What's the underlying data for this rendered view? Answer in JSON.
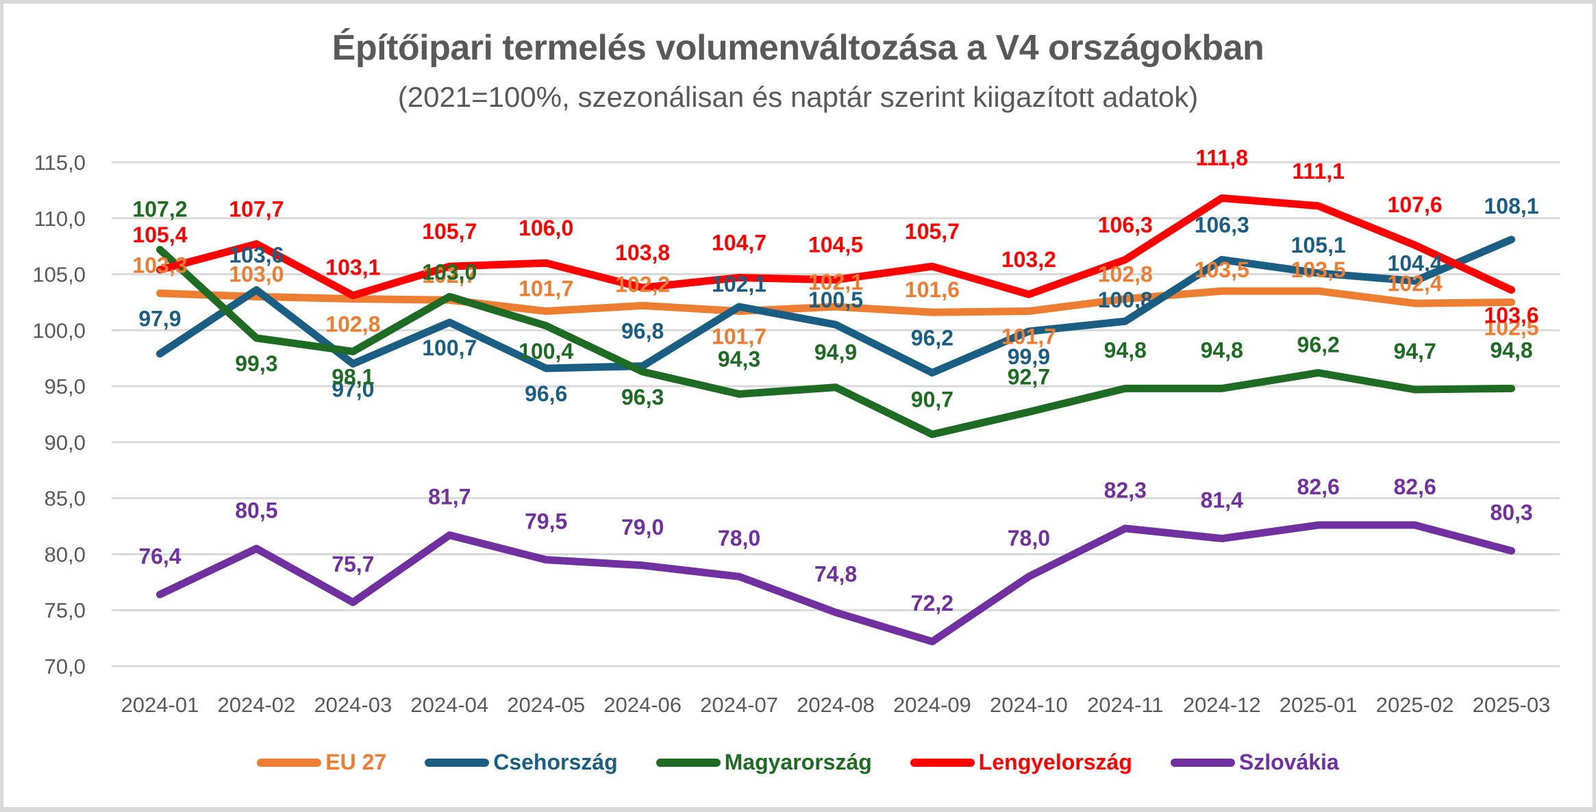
{
  "chart_data": {
    "type": "line",
    "title": "Építőipari termelés volumenváltozása a V4 országokban",
    "subtitle": "(2021=100%, szezonálisan és naptár szerint kiigazított adatok)",
    "xlabel": "",
    "ylabel": "",
    "ylim": [
      70,
      115
    ],
    "yticks": [
      "115,0",
      "110,0",
      "105,0",
      "100,0",
      "95,0",
      "90,0",
      "85,0",
      "80,0",
      "75,0",
      "70,0"
    ],
    "ytick_values": [
      115,
      110,
      105,
      100,
      95,
      90,
      85,
      80,
      75,
      70
    ],
    "grid": true,
    "legend_position": "bottom",
    "categories": [
      "2024-01",
      "2024-02",
      "2024-03",
      "2024-04",
      "2024-05",
      "2024-06",
      "2024-07",
      "2024-08",
      "2024-09",
      "2024-10",
      "2024-11",
      "2024-12",
      "2025-01",
      "2025-02",
      "2025-03"
    ],
    "series": [
      {
        "name": "EU 27",
        "color": "#ED7D31",
        "values": [
          103.3,
          103.0,
          102.8,
          102.7,
          101.7,
          102.2,
          101.7,
          102.1,
          101.6,
          101.7,
          102.8,
          103.5,
          103.5,
          102.4,
          102.5
        ],
        "labels": [
          "103,3",
          "103,0",
          "102,8",
          "102,7",
          "101,7",
          "102,2",
          "101,7",
          "102,1",
          "101,6",
          "101,7",
          "102,8",
          "103,5",
          "103,5",
          "102,4",
          "102,5"
        ]
      },
      {
        "name": "Csehország",
        "color": "#1A5E84",
        "values": [
          97.9,
          103.6,
          97.0,
          100.7,
          96.6,
          96.8,
          102.1,
          100.5,
          96.2,
          99.9,
          100.8,
          106.3,
          105.1,
          104.4,
          108.1
        ],
        "labels": [
          "97,9",
          "103,6",
          "97,0",
          "100,7",
          "96,6",
          "96,8",
          "102,1",
          "100,5",
          "96,2",
          "99,9",
          "100,8",
          "106,3",
          "105,1",
          "104,4",
          "108,1"
        ]
      },
      {
        "name": "Magyarország",
        "color": "#1E6B24",
        "values": [
          107.2,
          99.3,
          98.1,
          103.0,
          100.4,
          96.3,
          94.3,
          94.9,
          90.7,
          92.7,
          94.8,
          94.8,
          96.2,
          94.7,
          94.8
        ],
        "labels": [
          "107,2",
          "99,3",
          "98,1",
          "103,0",
          "100,4",
          "96,3",
          "94,3",
          "94,9",
          "90,7",
          "92,7",
          "94,8",
          "94,8",
          "96,2",
          "94,7",
          "94,8"
        ]
      },
      {
        "name": "Lengyelország",
        "color": "#FF0000",
        "values": [
          105.4,
          107.7,
          103.1,
          105.7,
          106.0,
          103.8,
          104.7,
          104.5,
          105.7,
          103.2,
          106.3,
          111.8,
          111.1,
          107.6,
          103.6
        ],
        "labels": [
          "105,4",
          "107,7",
          "103,1",
          "105,7",
          "106,0",
          "103,8",
          "104,7",
          "104,5",
          "105,7",
          "103,2",
          "106,3",
          "111,8",
          "111,1",
          "107,6",
          "103,6"
        ]
      },
      {
        "name": "Szlovákia",
        "color": "#7030A0",
        "values": [
          76.4,
          80.5,
          75.7,
          81.7,
          79.5,
          79.0,
          78.0,
          74.8,
          72.2,
          78.0,
          82.3,
          81.4,
          82.6,
          82.6,
          80.3
        ],
        "labels": [
          "76,4",
          "80,5",
          "75,7",
          "81,7",
          "79,5",
          "79,0",
          "78,0",
          "74,8",
          "72,2",
          "78,0",
          "82,3",
          "81,4",
          "82,6",
          "82,6",
          "80,3"
        ]
      }
    ]
  }
}
